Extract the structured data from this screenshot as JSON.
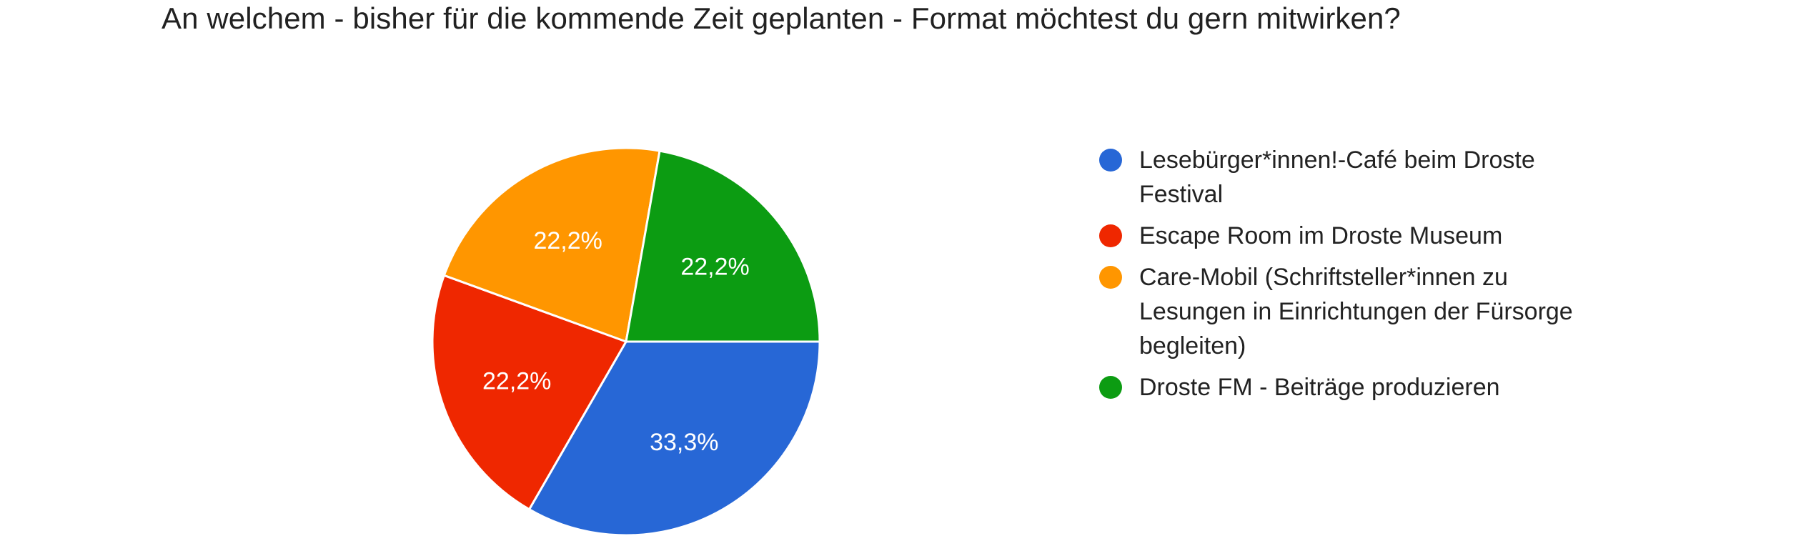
{
  "chart_data": {
    "type": "pie",
    "title": "An welchem - bisher für die kommende Zeit geplanten - Format möchtest du gern mitwirken?",
    "slices": [
      {
        "label": "Lesebürger*innen!-Café beim Droste Festival",
        "value": 33.3,
        "display": "33,3%",
        "color": "#2767d6"
      },
      {
        "label": "Escape Room im Droste Museum",
        "value": 22.2,
        "display": "22,2%",
        "color": "#ef2700"
      },
      {
        "label": "Care-Mobil (Schriftsteller*innen zu Lesungen in Einrichtungen der Fürsorge begleiten)",
        "value": 22.2,
        "display": "22,2%",
        "color": "#ff9600"
      },
      {
        "label": "Droste FM - Beiträge produzieren",
        "value": 22.2,
        "display": "22,2%",
        "color": "#0c9c12"
      }
    ],
    "legend_position": "right"
  }
}
